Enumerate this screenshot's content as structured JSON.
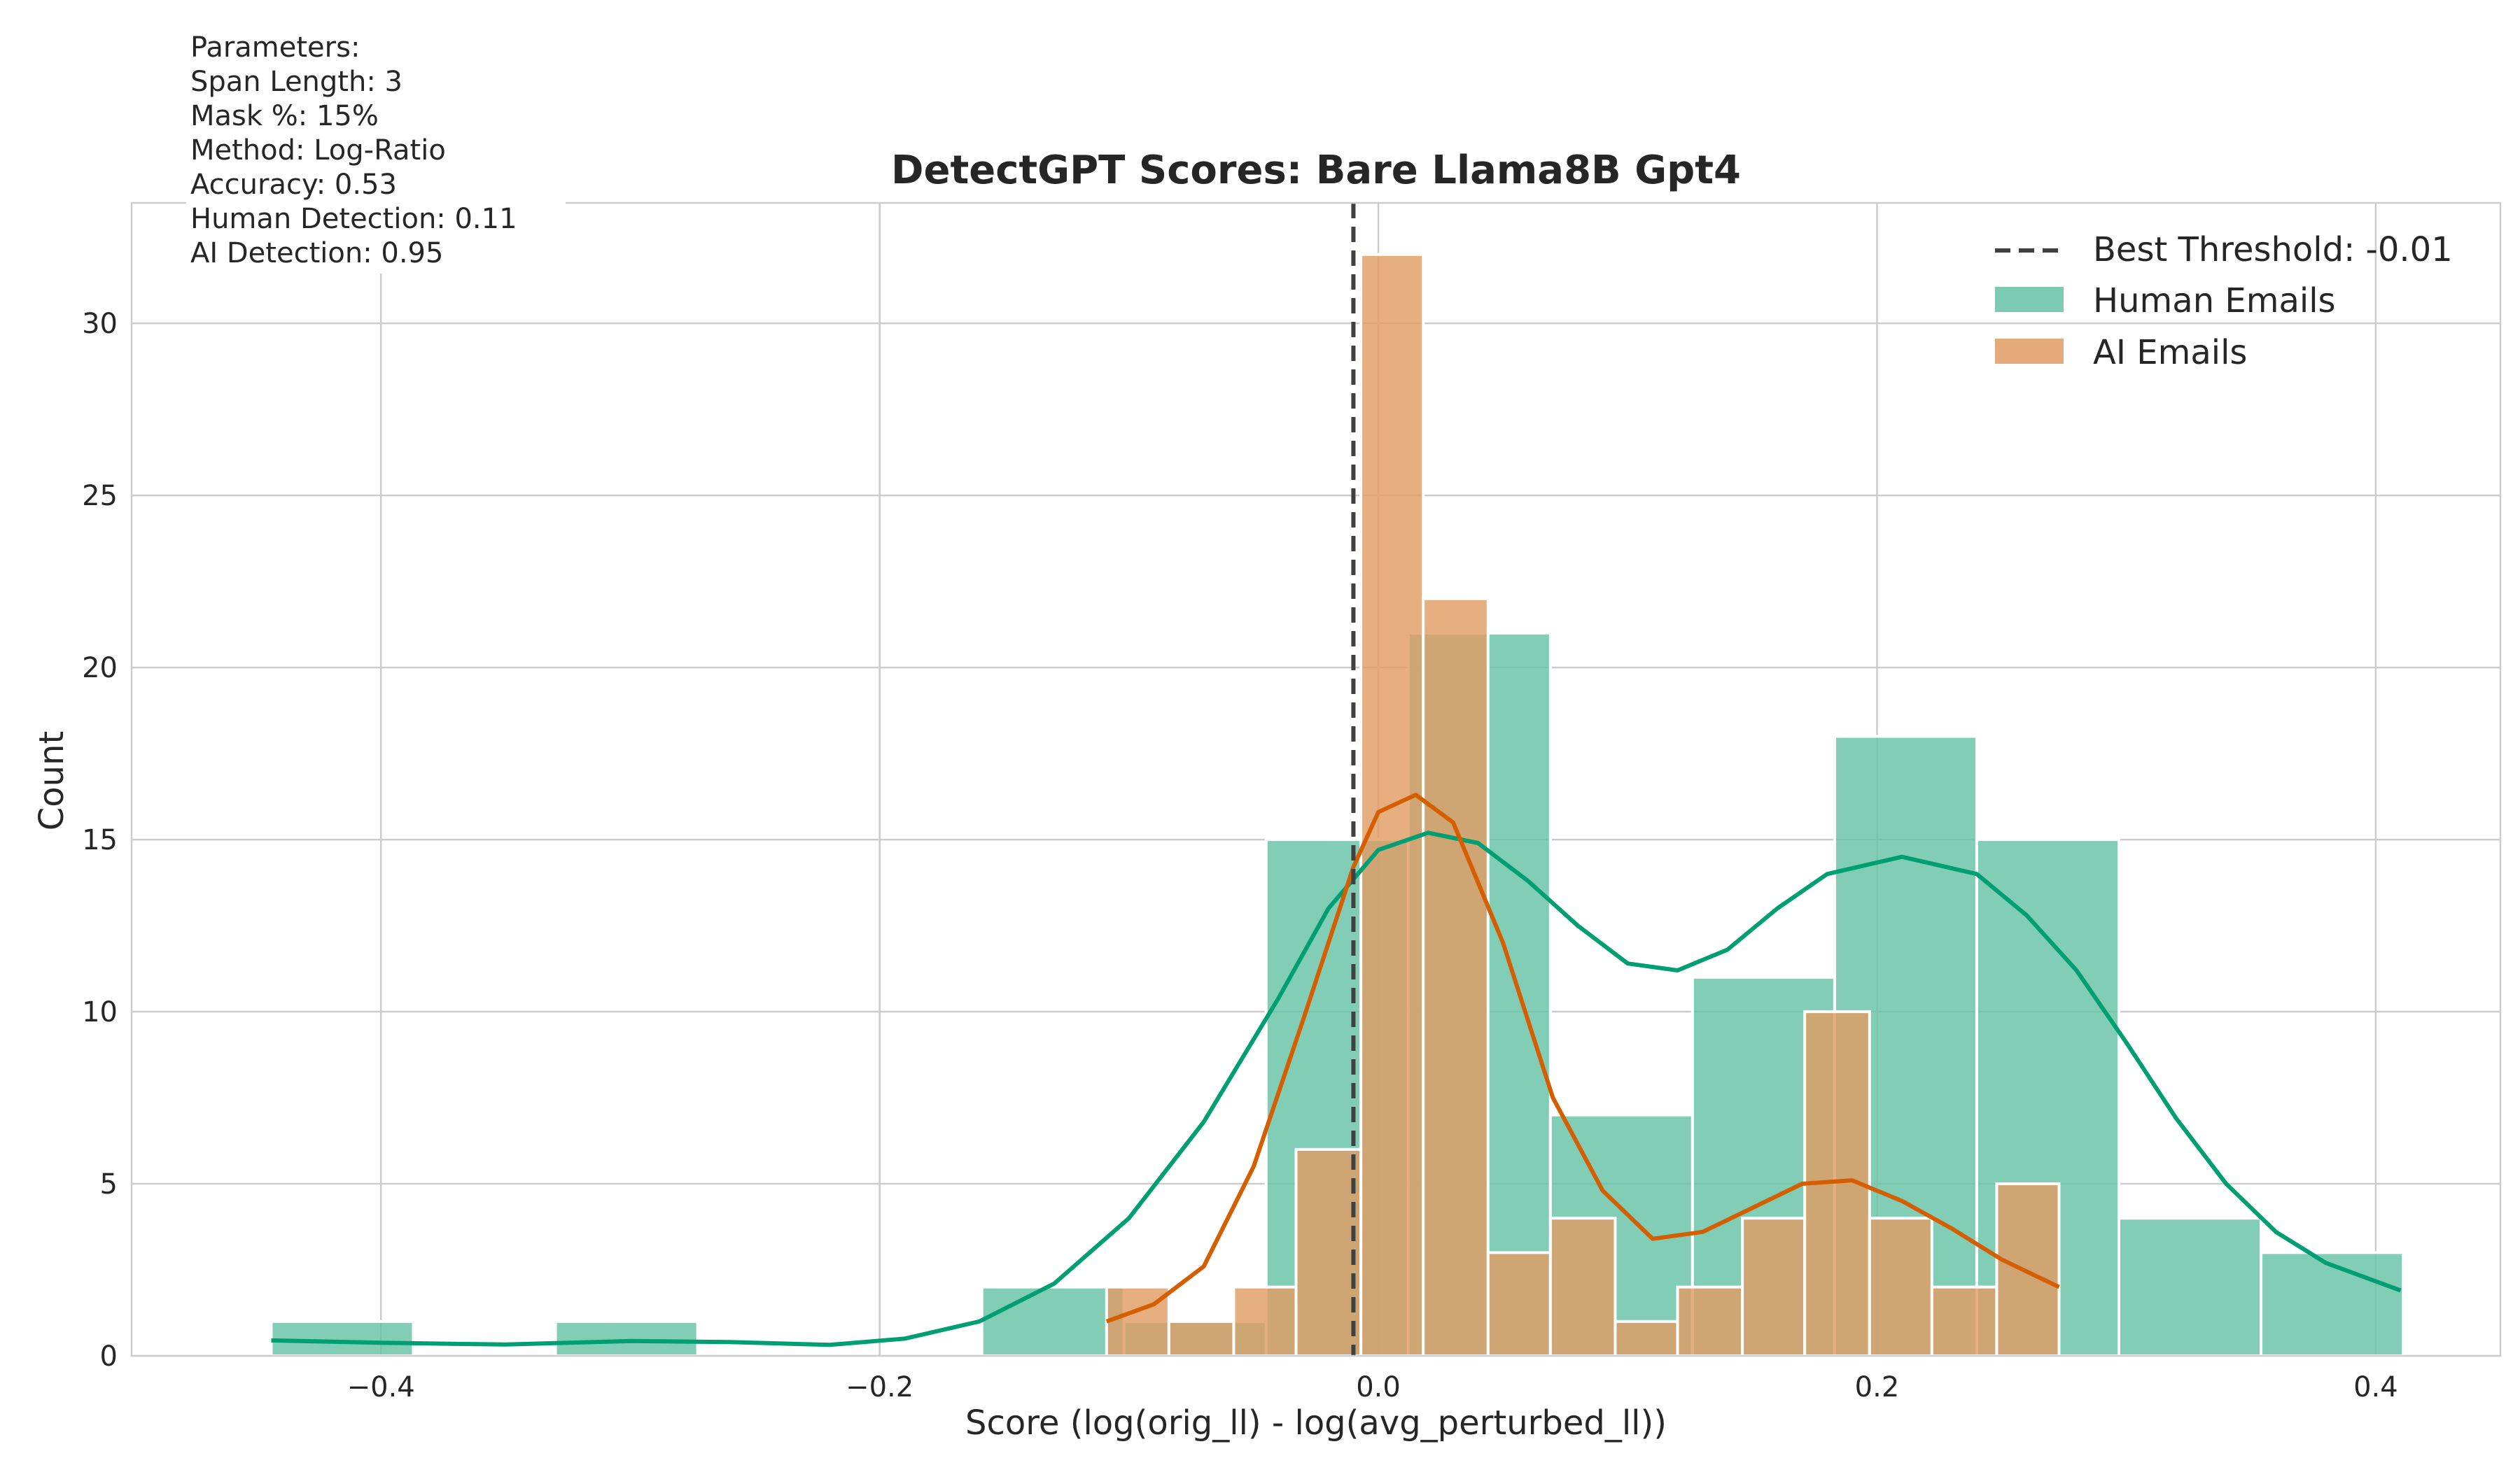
{
  "chart_data": {
    "type": "histogram",
    "title": "DetectGPT Scores: Bare Llama8B Gpt4",
    "xlabel": "Score (log(orig_ll) - log(avg_perturbed_ll))",
    "ylabel": "Count",
    "xlim": [
      -0.5,
      0.45
    ],
    "ylim": [
      0,
      33.5
    ],
    "xticks": [
      -0.4,
      -0.2,
      0.0,
      0.2,
      0.4
    ],
    "xtick_labels": [
      "−0.4",
      "−0.2",
      "0.0",
      "0.2",
      "0.4"
    ],
    "yticks": [
      0,
      5,
      10,
      15,
      20,
      25,
      30
    ],
    "ytick_labels": [
      "0",
      "5",
      "10",
      "15",
      "20",
      "25",
      "30"
    ],
    "grid": true,
    "legend_position": "top-right",
    "threshold": {
      "value": -0.01,
      "label": "Best Threshold: -0.01",
      "color": "#404040"
    },
    "series": [
      {
        "name": "Human Emails",
        "color": "#66c2a5",
        "line_color": "#009e73",
        "bins": [
          {
            "x0": -0.444,
            "x1": -0.387,
            "count": 1
          },
          {
            "x0": -0.387,
            "x1": -0.33,
            "count": 0
          },
          {
            "x0": -0.33,
            "x1": -0.273,
            "count": 1
          },
          {
            "x0": -0.273,
            "x1": -0.216,
            "count": 0
          },
          {
            "x0": -0.216,
            "x1": -0.159,
            "count": 0
          },
          {
            "x0": -0.159,
            "x1": -0.102,
            "count": 2
          },
          {
            "x0": -0.102,
            "x1": -0.045,
            "count": 1
          },
          {
            "x0": -0.045,
            "x1": 0.012,
            "count": 15
          },
          {
            "x0": 0.012,
            "x1": 0.069,
            "count": 21
          },
          {
            "x0": 0.069,
            "x1": 0.126,
            "count": 7
          },
          {
            "x0": 0.126,
            "x1": 0.183,
            "count": 11
          },
          {
            "x0": 0.183,
            "x1": 0.24,
            "count": 18
          },
          {
            "x0": 0.24,
            "x1": 0.297,
            "count": 15
          },
          {
            "x0": 0.297,
            "x1": 0.354,
            "count": 4
          },
          {
            "x0": 0.354,
            "x1": 0.411,
            "count": 3
          }
        ],
        "kde": [
          [
            -0.444,
            0.45
          ],
          [
            -0.4,
            0.38
          ],
          [
            -0.35,
            0.33
          ],
          [
            -0.3,
            0.43
          ],
          [
            -0.26,
            0.4
          ],
          [
            -0.22,
            0.32
          ],
          [
            -0.19,
            0.5
          ],
          [
            -0.16,
            1.0
          ],
          [
            -0.13,
            2.1
          ],
          [
            -0.1,
            4.0
          ],
          [
            -0.07,
            6.8
          ],
          [
            -0.04,
            10.4
          ],
          [
            -0.02,
            13.0
          ],
          [
            0.0,
            14.7
          ],
          [
            0.02,
            15.2
          ],
          [
            0.04,
            14.9
          ],
          [
            0.06,
            13.8
          ],
          [
            0.08,
            12.5
          ],
          [
            0.1,
            11.4
          ],
          [
            0.12,
            11.2
          ],
          [
            0.14,
            11.8
          ],
          [
            0.16,
            13.0
          ],
          [
            0.18,
            14.0
          ],
          [
            0.21,
            14.5
          ],
          [
            0.24,
            14.0
          ],
          [
            0.26,
            12.8
          ],
          [
            0.28,
            11.2
          ],
          [
            0.3,
            9.1
          ],
          [
            0.32,
            6.9
          ],
          [
            0.34,
            5.0
          ],
          [
            0.36,
            3.6
          ],
          [
            0.38,
            2.7
          ],
          [
            0.41,
            1.9
          ]
        ]
      },
      {
        "name": "AI Emails",
        "color": "#e09e64",
        "line_color": "#d55e00",
        "bins": [
          {
            "x0": -0.109,
            "x1": -0.084,
            "count": 2
          },
          {
            "x0": -0.084,
            "x1": -0.058,
            "count": 1
          },
          {
            "x0": -0.058,
            "x1": -0.033,
            "count": 2
          },
          {
            "x0": -0.033,
            "x1": -0.007,
            "count": 6
          },
          {
            "x0": -0.007,
            "x1": 0.018,
            "count": 32
          },
          {
            "x0": 0.018,
            "x1": 0.044,
            "count": 22
          },
          {
            "x0": 0.044,
            "x1": 0.069,
            "count": 3
          },
          {
            "x0": 0.069,
            "x1": 0.095,
            "count": 4
          },
          {
            "x0": 0.095,
            "x1": 0.12,
            "count": 1
          },
          {
            "x0": 0.12,
            "x1": 0.146,
            "count": 2
          },
          {
            "x0": 0.146,
            "x1": 0.171,
            "count": 4
          },
          {
            "x0": 0.171,
            "x1": 0.197,
            "count": 10
          },
          {
            "x0": 0.197,
            "x1": 0.222,
            "count": 4
          },
          {
            "x0": 0.222,
            "x1": 0.248,
            "count": 2
          },
          {
            "x0": 0.248,
            "x1": 0.273,
            "count": 5
          }
        ],
        "kde": [
          [
            -0.109,
            1.0
          ],
          [
            -0.09,
            1.5
          ],
          [
            -0.07,
            2.6
          ],
          [
            -0.05,
            5.5
          ],
          [
            -0.03,
            9.8
          ],
          [
            -0.01,
            14.2
          ],
          [
            0.0,
            15.8
          ],
          [
            0.015,
            16.3
          ],
          [
            0.03,
            15.5
          ],
          [
            0.05,
            12.0
          ],
          [
            0.07,
            7.5
          ],
          [
            0.09,
            4.8
          ],
          [
            0.11,
            3.4
          ],
          [
            0.13,
            3.6
          ],
          [
            0.15,
            4.3
          ],
          [
            0.17,
            5.0
          ],
          [
            0.19,
            5.1
          ],
          [
            0.21,
            4.5
          ],
          [
            0.23,
            3.7
          ],
          [
            0.25,
            2.8
          ],
          [
            0.273,
            2.0
          ]
        ]
      }
    ],
    "annotation": [
      "Parameters:",
      "Span Length: 3",
      "Mask %: 15%",
      "Method: Log-Ratio",
      "Accuracy: 0.53",
      "Human Detection: 0.11",
      "AI Detection: 0.95"
    ]
  }
}
